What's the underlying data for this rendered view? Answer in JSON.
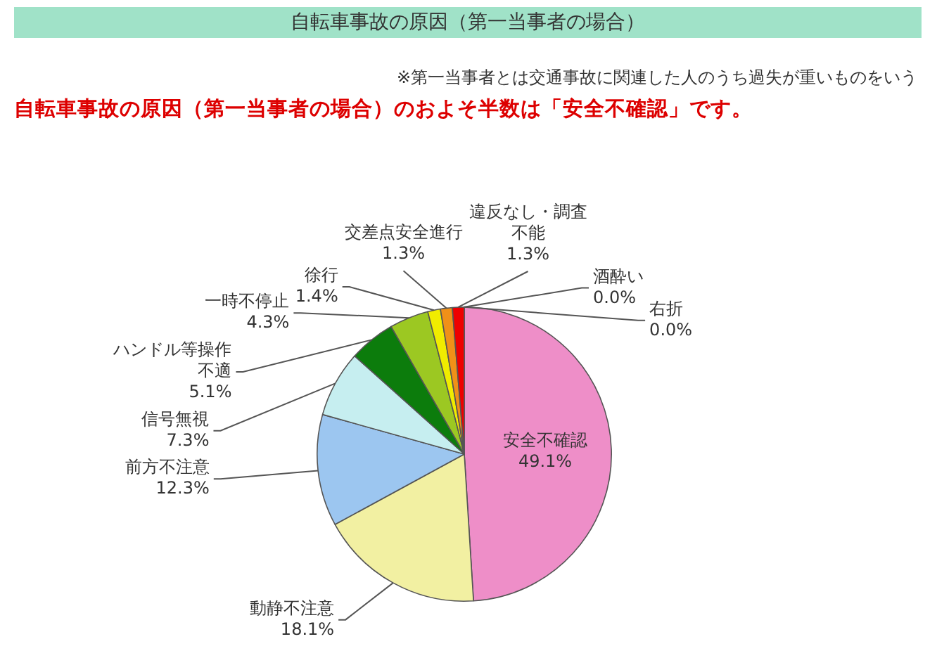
{
  "chart_data": {
    "type": "pie",
    "title": "自転車事故の原因（第一当事者の場合）",
    "subtitle": "自転車事故の原因（第一当事者の場合）のおよそ半数は「安全不確認」です。",
    "annotations": [
      "※第一当事者とは交通事故に関連した人のうち過失が重いものをいう"
    ],
    "categories": [
      "安全不確認",
      "動静不注意",
      "前方不注意",
      "信号無視",
      "ハンドル等操作不適",
      "一時不停止",
      "徐行",
      "交差点安全進行",
      "違反なし・調査不能",
      "酒酔い",
      "右折"
    ],
    "values": [
      49.1,
      18.1,
      12.3,
      7.3,
      5.1,
      4.3,
      1.4,
      1.3,
      1.3,
      0,
      0
    ],
    "colors": [
      "#ee8ec8",
      "#f2f0a2",
      "#9cc6f0",
      "#c6eef0",
      "#0c7c0c",
      "#9cc822",
      "#f0ec00",
      "#f09018",
      "#ee0000",
      null,
      null
    ],
    "value_labels": [
      "49.1%",
      "18.1%",
      "12.3%",
      "7.3%",
      "5.1%",
      "4.3%",
      "1.4%",
      "1.3%",
      "1.3%",
      "0.0%",
      "0.0%"
    ]
  }
}
